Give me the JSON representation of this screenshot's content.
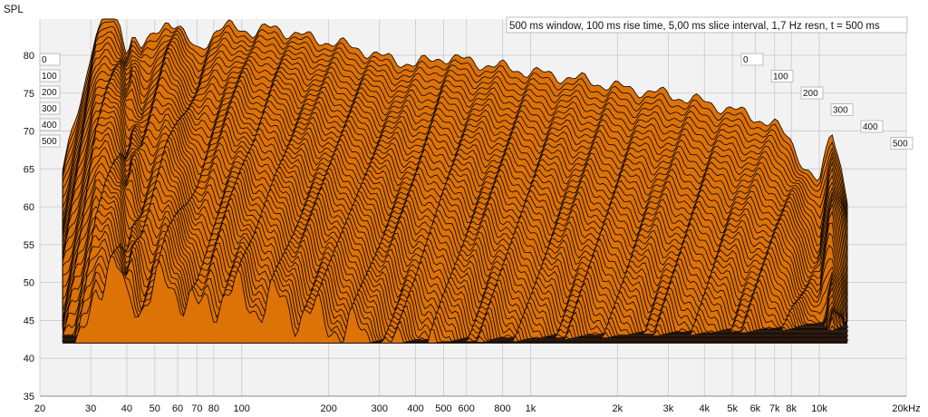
{
  "chart_data": {
    "type": "area",
    "subtype": "waterfall-3d",
    "ylabel": "SPL",
    "settings_text": "500 ms window, 100 ms rise time, 5,00 ms slice interval, 1,7 Hz resn, t = 500 ms",
    "x_scale": "log",
    "x_range_hz": [
      20,
      20000
    ],
    "y_range": [
      35,
      80
    ],
    "x_ticks": [
      {
        "v": 20,
        "label": "20"
      },
      {
        "v": 30,
        "label": "30"
      },
      {
        "v": 40,
        "label": "40"
      },
      {
        "v": 50,
        "label": "50"
      },
      {
        "v": 60,
        "label": "60"
      },
      {
        "v": 70,
        "label": "70"
      },
      {
        "v": 80,
        "label": "80"
      },
      {
        "v": 100,
        "label": "100"
      },
      {
        "v": 200,
        "label": "200"
      },
      {
        "v": 300,
        "label": "300"
      },
      {
        "v": 400,
        "label": "400"
      },
      {
        "v": 500,
        "label": "500"
      },
      {
        "v": 600,
        "label": "600"
      },
      {
        "v": 800,
        "label": "800"
      },
      {
        "v": 1000,
        "label": "1k"
      },
      {
        "v": 2000,
        "label": "2k"
      },
      {
        "v": 3000,
        "label": "3k"
      },
      {
        "v": 4000,
        "label": "4k"
      },
      {
        "v": 5000,
        "label": "5k"
      },
      {
        "v": 6000,
        "label": "6k"
      },
      {
        "v": 7000,
        "label": "7k"
      },
      {
        "v": 8000,
        "label": "8k"
      },
      {
        "v": 10000,
        "label": "10k"
      },
      {
        "v": 20000,
        "label": "20kHz"
      }
    ],
    "y_ticks": [
      35,
      40,
      45,
      50,
      55,
      60,
      65,
      70,
      75,
      80
    ],
    "time_ticks_ms": [
      "0",
      "100",
      "200",
      "300",
      "400",
      "500"
    ],
    "slice_interval_ms": 5,
    "window_ms": 500,
    "freq_range_displayed_hz": [
      24,
      12500
    ],
    "first_slice_envelope": {
      "freq_hz": [
        24,
        28,
        31,
        34,
        36,
        38,
        40,
        42,
        45,
        48,
        50,
        55,
        60,
        65,
        70,
        75,
        80,
        90,
        100,
        110,
        130,
        150,
        200,
        260,
        300,
        400,
        500,
        700,
        1000,
        1500,
        2000,
        3000,
        4000,
        5000,
        6000,
        7000,
        8000,
        9000,
        10000,
        11000,
        12000,
        12500
      ],
      "spl_db": [
        60,
        70,
        78,
        80,
        80,
        79,
        76,
        78,
        76,
        77,
        78,
        80,
        79,
        77,
        76,
        77,
        78,
        79,
        79,
        78,
        79,
        78,
        77,
        76,
        75,
        74,
        75,
        74,
        73,
        72,
        71,
        70,
        69,
        68,
        67,
        66,
        64,
        60,
        58,
        66,
        60,
        56
      ]
    },
    "floor_spl_db": 42,
    "grid": true,
    "fill_color": "#dd7206",
    "line_color": "#1a0d03",
    "panel_color": "#f2f2f2",
    "grid_color": "#c9c9c9"
  }
}
